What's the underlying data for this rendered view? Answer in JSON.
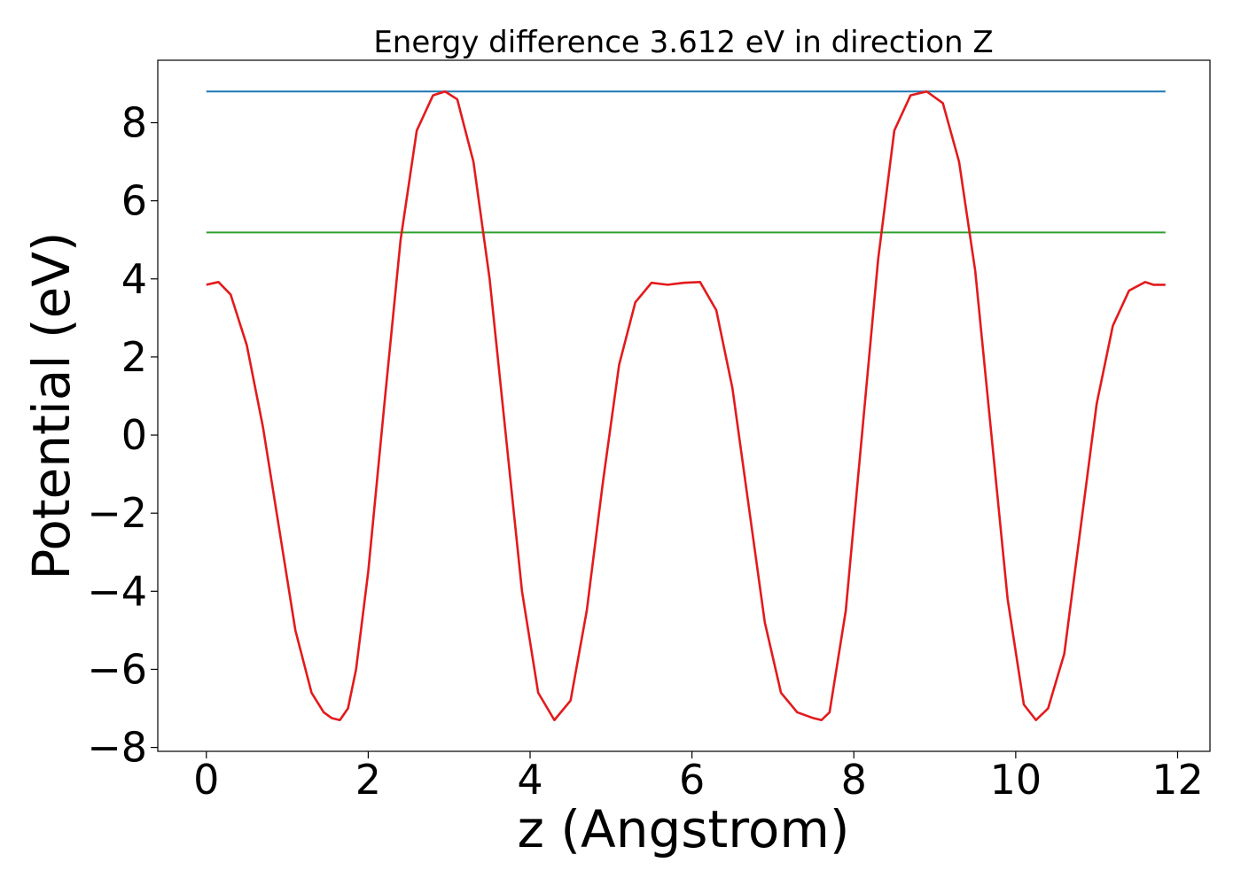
{
  "chart_data": {
    "type": "line",
    "title": "Energy difference 3.612 eV in direction Z",
    "xlabel": "z (Angstrom)",
    "ylabel": "Potential (eV)",
    "xlim": [
      -0.6,
      12.4
    ],
    "ylim": [
      -8.1,
      9.6
    ],
    "grid": false,
    "x_ticks": [
      0,
      2,
      4,
      6,
      8,
      10,
      12
    ],
    "x_tick_labels": [
      "0",
      "2",
      "4",
      "6",
      "8",
      "10",
      "12"
    ],
    "y_ticks": [
      -8,
      -6,
      -4,
      -2,
      0,
      2,
      4,
      6,
      8
    ],
    "y_tick_labels": [
      "−8",
      "−6",
      "−4",
      "−2",
      "0",
      "2",
      "4",
      "6",
      "8"
    ],
    "series": [
      {
        "kind": "hline",
        "color": "#1f77b4",
        "x": [
          0,
          11.85
        ],
        "y": [
          8.8,
          8.8
        ]
      },
      {
        "kind": "hline",
        "color": "#2ca02c",
        "x": [
          0,
          11.85
        ],
        "y": [
          5.19,
          5.19
        ]
      },
      {
        "kind": "curve",
        "color": "#e31a1c",
        "x": [
          0.0,
          0.15,
          0.3,
          0.5,
          0.7,
          0.9,
          1.1,
          1.3,
          1.45,
          1.55,
          1.65,
          1.75,
          1.85,
          2.0,
          2.2,
          2.4,
          2.6,
          2.8,
          2.95,
          3.1,
          3.3,
          3.5,
          3.7,
          3.9,
          4.1,
          4.3,
          4.5,
          4.7,
          4.9,
          5.1,
          5.3,
          5.5,
          5.7,
          5.9,
          6.1,
          6.3,
          6.5,
          6.7,
          6.9,
          7.1,
          7.3,
          7.5,
          7.6,
          7.7,
          7.9,
          8.1,
          8.3,
          8.5,
          8.7,
          8.9,
          9.1,
          9.3,
          9.5,
          9.7,
          9.9,
          10.1,
          10.25,
          10.4,
          10.6,
          10.8,
          11.0,
          11.2,
          11.4,
          11.6,
          11.7,
          11.85
        ],
        "y": [
          3.85,
          3.92,
          3.6,
          2.3,
          0.2,
          -2.4,
          -5.0,
          -6.6,
          -7.1,
          -7.25,
          -7.3,
          -7.0,
          -6.0,
          -3.5,
          0.8,
          5.0,
          7.8,
          8.7,
          8.8,
          8.6,
          7.0,
          4.0,
          0.0,
          -4.0,
          -6.6,
          -7.3,
          -6.8,
          -4.5,
          -1.2,
          1.8,
          3.4,
          3.9,
          3.85,
          3.9,
          3.92,
          3.2,
          1.2,
          -1.8,
          -4.8,
          -6.6,
          -7.1,
          -7.25,
          -7.3,
          -7.1,
          -4.5,
          0.0,
          4.5,
          7.8,
          8.7,
          8.8,
          8.5,
          7.0,
          4.2,
          0.0,
          -4.2,
          -6.9,
          -7.3,
          -7.0,
          -5.6,
          -2.4,
          0.8,
          2.8,
          3.7,
          3.92,
          3.85,
          3.85
        ]
      }
    ]
  }
}
